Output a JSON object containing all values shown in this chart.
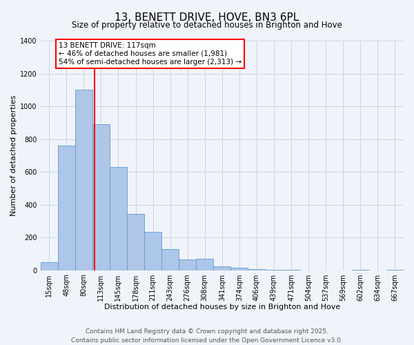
{
  "title": "13, BENETT DRIVE, HOVE, BN3 6PL",
  "subtitle": "Size of property relative to detached houses in Brighton and Hove",
  "xlabel": "Distribution of detached houses by size in Brighton and Hove",
  "ylabel": "Number of detached properties",
  "bar_labels": [
    "15sqm",
    "48sqm",
    "80sqm",
    "113sqm",
    "145sqm",
    "178sqm",
    "211sqm",
    "243sqm",
    "276sqm",
    "308sqm",
    "341sqm",
    "374sqm",
    "406sqm",
    "439sqm",
    "471sqm",
    "504sqm",
    "537sqm",
    "569sqm",
    "602sqm",
    "634sqm",
    "667sqm"
  ],
  "bar_values": [
    50,
    760,
    1100,
    890,
    630,
    345,
    235,
    130,
    65,
    70,
    25,
    15,
    5,
    2,
    1,
    0,
    0,
    0,
    1,
    0,
    1
  ],
  "bar_color": "#aec6e8",
  "bar_edgecolor": "#5b9bd5",
  "background_color": "#f0f4fa",
  "grid_color": "#c8d4e8",
  "property_line_label": "13 BENETT DRIVE: 117sqm",
  "annotation_line1": "← 46% of detached houses are smaller (1,981)",
  "annotation_line2": "54% of semi-detached houses are larger (2,313) →",
  "annotation_box_color": "white",
  "annotation_box_edgecolor": "red",
  "ylim": [
    0,
    1400
  ],
  "yticks": [
    0,
    200,
    400,
    600,
    800,
    1000,
    1200,
    1400
  ],
  "footer_line1": "Contains HM Land Registry data © Crown copyright and database right 2025.",
  "footer_line2": "Contains public sector information licensed under the Open Government Licence v3.0.",
  "title_fontsize": 11,
  "subtitle_fontsize": 8.5,
  "xlabel_fontsize": 8,
  "ylabel_fontsize": 8,
  "tick_fontsize": 7,
  "annotation_fontsize": 7.5,
  "footer_fontsize": 6.5
}
